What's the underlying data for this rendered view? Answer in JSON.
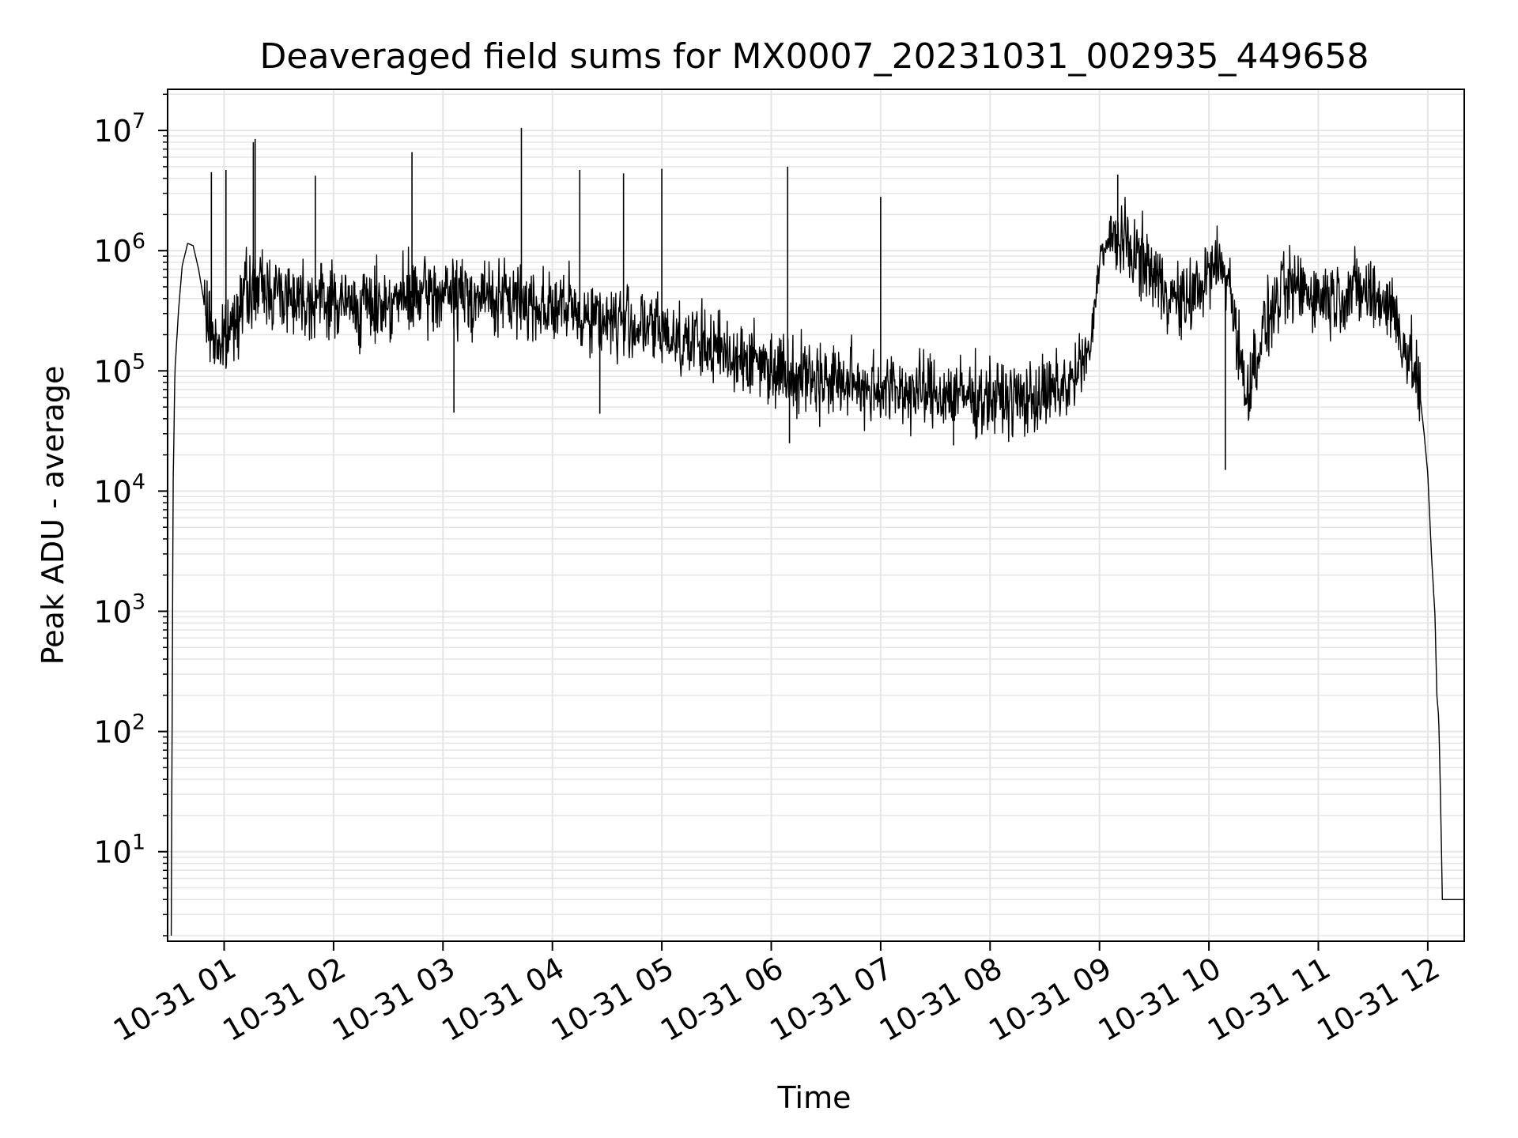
{
  "chart_data": {
    "type": "line",
    "title": "Deaveraged field sums for MX0007_20231031_002935_449658",
    "xlabel": "Time",
    "ylabel": "Peak ADU - average",
    "y_scale": "log",
    "ylim": [
      1.8,
      22000000
    ],
    "xlim": [
      "2023-10-31 00:29",
      "2023-10-31 12:20"
    ],
    "grid": true,
    "line_color": "#000000",
    "grid_color": "#e5e5e5",
    "x_ticks": [
      {
        "value": "2023-10-31 01:00",
        "label": "10-31 01"
      },
      {
        "value": "2023-10-31 02:00",
        "label": "10-31 02"
      },
      {
        "value": "2023-10-31 03:00",
        "label": "10-31 03"
      },
      {
        "value": "2023-10-31 04:00",
        "label": "10-31 04"
      },
      {
        "value": "2023-10-31 05:00",
        "label": "10-31 05"
      },
      {
        "value": "2023-10-31 06:00",
        "label": "10-31 06"
      },
      {
        "value": "2023-10-31 07:00",
        "label": "10-31 07"
      },
      {
        "value": "2023-10-31 08:00",
        "label": "10-31 08"
      },
      {
        "value": "2023-10-31 09:00",
        "label": "10-31 09"
      },
      {
        "value": "2023-10-31 10:00",
        "label": "10-31 10"
      },
      {
        "value": "2023-10-31 11:00",
        "label": "10-31 11"
      },
      {
        "value": "2023-10-31 12:00",
        "label": "10-31 12"
      }
    ],
    "y_ticks": [
      {
        "value": 10,
        "base": "10",
        "exp": "1"
      },
      {
        "value": 100,
        "base": "10",
        "exp": "2"
      },
      {
        "value": 1000,
        "base": "10",
        "exp": "3"
      },
      {
        "value": 10000,
        "base": "10",
        "exp": "4"
      },
      {
        "value": 100000,
        "base": "10",
        "exp": "5"
      },
      {
        "value": 1000000,
        "base": "10",
        "exp": "6"
      },
      {
        "value": 10000000,
        "base": "10",
        "exp": "7"
      }
    ],
    "series": [
      {
        "x": [
          "2023-10-31 00:31",
          "2023-10-31 00:32",
          "2023-10-31 00:33",
          "2023-10-31 00:35",
          "2023-10-31 00:37",
          "2023-10-31 00:40",
          "2023-10-31 00:43",
          "2023-10-31 00:46",
          "2023-10-31 00:50",
          "2023-10-31 00:55",
          "2023-10-31 01:00",
          "2023-10-31 01:10",
          "2023-10-31 01:20",
          "2023-10-31 01:30",
          "2023-10-31 01:40",
          "2023-10-31 01:50",
          "2023-10-31 02:00",
          "2023-10-31 02:15",
          "2023-10-31 02:30",
          "2023-10-31 02:45",
          "2023-10-31 03:00",
          "2023-10-31 03:15",
          "2023-10-31 03:30",
          "2023-10-31 03:45",
          "2023-10-31 04:00",
          "2023-10-31 04:15",
          "2023-10-31 04:30",
          "2023-10-31 04:45",
          "2023-10-31 05:00",
          "2023-10-31 05:15",
          "2023-10-31 05:30",
          "2023-10-31 05:45",
          "2023-10-31 06:00",
          "2023-10-31 06:15",
          "2023-10-31 06:30",
          "2023-10-31 06:45",
          "2023-10-31 07:00",
          "2023-10-31 07:15",
          "2023-10-31 07:30",
          "2023-10-31 07:45",
          "2023-10-31 08:00",
          "2023-10-31 08:15",
          "2023-10-31 08:30",
          "2023-10-31 08:45",
          "2023-10-31 08:55",
          "2023-10-31 09:00",
          "2023-10-31 09:08",
          "2023-10-31 09:15",
          "2023-10-31 09:25",
          "2023-10-31 09:35",
          "2023-10-31 09:45",
          "2023-10-31 09:55",
          "2023-10-31 10:05",
          "2023-10-31 10:12",
          "2023-10-31 10:20",
          "2023-10-31 10:30",
          "2023-10-31 10:40",
          "2023-10-31 10:50",
          "2023-10-31 11:00",
          "2023-10-31 11:10",
          "2023-10-31 11:20",
          "2023-10-31 11:30",
          "2023-10-31 11:40",
          "2023-10-31 11:48",
          "2023-10-31 11:55",
          "2023-10-31 11:58",
          "2023-10-31 12:00",
          "2023-10-31 12:02",
          "2023-10-31 12:04",
          "2023-10-31 12:05",
          "2023-10-31 12:06",
          "2023-10-31 12:07",
          "2023-10-31 12:08",
          "2023-10-31 12:10",
          "2023-10-31 12:20"
        ],
        "y": [
          2,
          10500,
          100000,
          320000,
          750000,
          1150000,
          1100000,
          700000,
          300000,
          180000,
          160000,
          420000,
          500000,
          450000,
          420000,
          400000,
          380000,
          340000,
          380000,
          410000,
          440000,
          420000,
          400000,
          380000,
          340000,
          300000,
          270000,
          240000,
          210000,
          180000,
          150000,
          130000,
          110000,
          95000,
          85000,
          78000,
          72000,
          68000,
          65000,
          62000,
          60000,
          58000,
          62000,
          80000,
          150000,
          900000,
          1300000,
          1100000,
          800000,
          500000,
          350000,
          500000,
          800000,
          500000,
          60000,
          220000,
          450000,
          500000,
          420000,
          420000,
          480000,
          420000,
          350000,
          150000,
          80000,
          30000,
          14000,
          3000,
          900,
          200,
          130,
          28,
          4,
          4,
          4
        ]
      }
    ],
    "spikes": [
      {
        "x": "2023-10-31 00:53",
        "y": 4500000
      },
      {
        "x": "2023-10-31 01:01",
        "y": 4700000
      },
      {
        "x": "2023-10-31 01:16",
        "y": 8000000
      },
      {
        "x": "2023-10-31 01:17",
        "y": 8500000
      },
      {
        "x": "2023-10-31 01:50",
        "y": 4200000
      },
      {
        "x": "2023-10-31 02:43",
        "y": 6600000
      },
      {
        "x": "2023-10-31 03:43",
        "y": 10500000
      },
      {
        "x": "2023-10-31 04:15",
        "y": 4700000
      },
      {
        "x": "2023-10-31 04:39",
        "y": 4400000
      },
      {
        "x": "2023-10-31 05:00",
        "y": 4800000
      },
      {
        "x": "2023-10-31 06:09",
        "y": 5000000
      },
      {
        "x": "2023-10-31 07:00",
        "y": 2800000
      },
      {
        "x": "2023-10-31 09:10",
        "y": 4300000
      }
    ],
    "dips": [
      {
        "x": "2023-10-31 03:06",
        "y": 45000
      },
      {
        "x": "2023-10-31 04:26",
        "y": 44000
      },
      {
        "x": "2023-10-31 06:10",
        "y": 25000
      },
      {
        "x": "2023-10-31 07:40",
        "y": 24000
      },
      {
        "x": "2023-10-31 10:09",
        "y": 15000
      }
    ]
  }
}
